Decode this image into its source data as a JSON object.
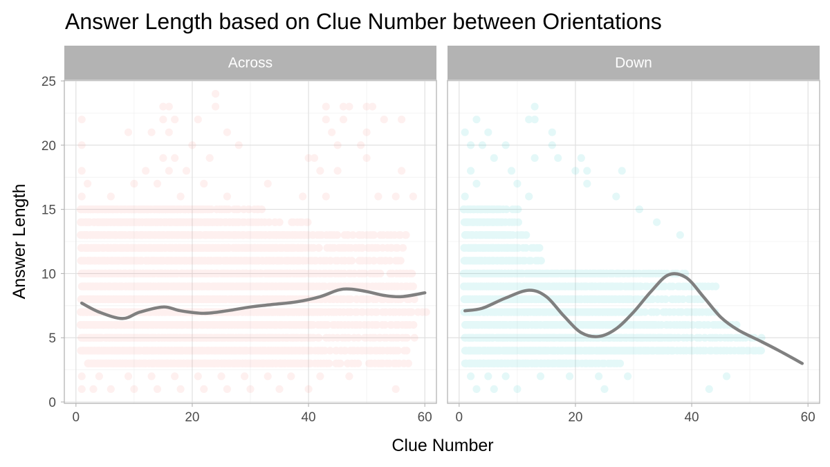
{
  "chart_data": {
    "type": "scatter",
    "title": "Answer Length based on Clue Number between Orientations",
    "xlabel": "Clue Number",
    "ylabel": "Answer Length",
    "xlim": [
      -2,
      62
    ],
    "ylim": [
      0,
      25
    ],
    "x_ticks": [
      0,
      20,
      40,
      60
    ],
    "x_tick_labels": [
      "0",
      "20",
      "40",
      "60"
    ],
    "y_ticks": [
      0,
      5,
      10,
      15,
      20,
      25
    ],
    "y_tick_labels": [
      "0",
      "5",
      "10",
      "15",
      "20",
      "25"
    ],
    "grid": true,
    "legend": "none",
    "point_opacity": 0.1,
    "smooth_color": "#808080",
    "facets": [
      {
        "label": "Across",
        "color": "#F8766D",
        "points_sample": {
          "dense_bands": [
            {
              "y": 3,
              "x_range": [
                2,
                57
              ]
            },
            {
              "y": 4,
              "x_range": [
                1,
                57
              ]
            },
            {
              "y": 5,
              "x_range": [
                1,
                58
              ]
            },
            {
              "y": 6,
              "x_range": [
                1,
                58
              ]
            },
            {
              "y": 7,
              "x_range": [
                1,
                60
              ]
            },
            {
              "y": 8,
              "x_range": [
                1,
                58
              ]
            },
            {
              "y": 9,
              "x_range": [
                1,
                58
              ]
            },
            {
              "y": 10,
              "x_range": [
                1,
                58
              ]
            },
            {
              "y": 11,
              "x_range": [
                1,
                56
              ]
            },
            {
              "y": 12,
              "x_range": [
                1,
                56
              ]
            },
            {
              "y": 13,
              "x_range": [
                1,
                57
              ]
            },
            {
              "y": 14,
              "x_range": [
                1,
                40
              ]
            },
            {
              "y": 15,
              "x_range": [
                1,
                32
              ]
            }
          ],
          "sparse": [
            [
              1,
              1
            ],
            [
              3,
              1
            ],
            [
              6,
              1
            ],
            [
              10,
              1
            ],
            [
              14,
              1
            ],
            [
              18,
              1
            ],
            [
              22,
              1
            ],
            [
              26,
              1
            ],
            [
              30,
              1
            ],
            [
              35,
              1
            ],
            [
              40,
              1
            ],
            [
              55,
              1
            ],
            [
              1,
              2
            ],
            [
              4,
              2
            ],
            [
              9,
              2
            ],
            [
              13,
              2
            ],
            [
              17,
              2
            ],
            [
              21,
              2
            ],
            [
              25,
              2
            ],
            [
              29,
              2
            ],
            [
              33,
              2
            ],
            [
              37,
              2
            ],
            [
              42,
              2
            ],
            [
              47,
              2
            ],
            [
              1,
              16
            ],
            [
              2,
              17
            ],
            [
              6,
              16
            ],
            [
              10,
              17
            ],
            [
              14,
              17
            ],
            [
              18,
              16
            ],
            [
              22,
              17
            ],
            [
              26,
              16
            ],
            [
              33,
              17
            ],
            [
              39,
              16
            ],
            [
              43,
              16
            ],
            [
              52,
              16
            ],
            [
              55,
              16
            ],
            [
              58,
              16
            ],
            [
              1,
              18
            ],
            [
              12,
              18
            ],
            [
              16,
              18
            ],
            [
              19,
              18
            ],
            [
              42,
              18
            ],
            [
              45,
              18
            ],
            [
              56,
              18
            ],
            [
              15,
              19
            ],
            [
              17,
              19
            ],
            [
              23,
              19
            ],
            [
              40,
              19
            ],
            [
              41,
              19
            ],
            [
              50,
              19
            ],
            [
              1,
              20
            ],
            [
              20,
              20
            ],
            [
              28,
              20
            ],
            [
              45,
              20
            ],
            [
              49,
              20
            ],
            [
              9,
              21
            ],
            [
              13,
              21
            ],
            [
              16,
              21
            ],
            [
              26,
              21
            ],
            [
              44,
              21
            ],
            [
              50,
              21
            ],
            [
              1,
              22
            ],
            [
              15,
              22
            ],
            [
              17,
              22
            ],
            [
              21,
              22
            ],
            [
              43,
              22
            ],
            [
              46,
              22
            ],
            [
              53,
              22
            ],
            [
              56,
              22
            ],
            [
              15,
              23
            ],
            [
              16,
              23
            ],
            [
              24,
              23
            ],
            [
              43,
              23
            ],
            [
              46,
              23
            ],
            [
              47,
              23
            ],
            [
              50,
              23
            ],
            [
              51,
              23
            ],
            [
              24,
              24
            ]
          ]
        },
        "smooth": {
          "x": [
            1,
            4,
            8,
            11,
            15,
            18,
            22,
            26,
            30,
            34,
            38,
            42,
            45,
            47,
            50,
            53,
            56,
            60
          ],
          "y": [
            7.7,
            7.0,
            6.5,
            7.0,
            7.4,
            7.1,
            6.9,
            7.1,
            7.4,
            7.6,
            7.8,
            8.2,
            8.7,
            8.8,
            8.6,
            8.3,
            8.2,
            8.5
          ]
        }
      },
      {
        "label": "Down",
        "color": "#00BFC4",
        "points_sample": {
          "dense_bands": [
            {
              "y": 3,
              "x_range": [
                1,
                28
              ]
            },
            {
              "y": 4,
              "x_range": [
                1,
                52
              ]
            },
            {
              "y": 5,
              "x_range": [
                1,
                52
              ]
            },
            {
              "y": 6,
              "x_range": [
                1,
                48
              ]
            },
            {
              "y": 7,
              "x_range": [
                1,
                44
              ]
            },
            {
              "y": 8,
              "x_range": [
                1,
                42
              ]
            },
            {
              "y": 9,
              "x_range": [
                1,
                44
              ]
            },
            {
              "y": 10,
              "x_range": [
                1,
                39
              ]
            },
            {
              "y": 11,
              "x_range": [
                1,
                14
              ]
            },
            {
              "y": 12,
              "x_range": [
                1,
                14
              ]
            },
            {
              "y": 13,
              "x_range": [
                1,
                12
              ]
            },
            {
              "y": 14,
              "x_range": [
                1,
                10
              ]
            },
            {
              "y": 15,
              "x_range": [
                1,
                10
              ]
            }
          ],
          "sparse": [
            [
              3,
              1
            ],
            [
              6,
              1
            ],
            [
              10,
              1
            ],
            [
              25,
              1
            ],
            [
              43,
              1
            ],
            [
              2,
              2
            ],
            [
              5,
              2
            ],
            [
              8,
              2
            ],
            [
              14,
              2
            ],
            [
              19,
              2
            ],
            [
              24,
              2
            ],
            [
              29,
              2
            ],
            [
              46,
              2
            ],
            [
              1,
              16
            ],
            [
              3,
              17
            ],
            [
              10,
              17
            ],
            [
              12,
              16
            ],
            [
              22,
              17
            ],
            [
              27,
              16
            ],
            [
              31,
              15
            ],
            [
              34,
              14
            ],
            [
              38,
              13
            ],
            [
              2,
              18
            ],
            [
              9,
              18
            ],
            [
              20,
              18
            ],
            [
              22,
              18
            ],
            [
              28,
              18
            ],
            [
              6,
              19
            ],
            [
              13,
              19
            ],
            [
              17,
              19
            ],
            [
              21,
              19
            ],
            [
              2,
              20
            ],
            [
              4,
              20
            ],
            [
              8,
              20
            ],
            [
              16,
              20
            ],
            [
              1,
              21
            ],
            [
              5,
              21
            ],
            [
              16,
              21
            ],
            [
              3,
              22
            ],
            [
              12,
              22
            ],
            [
              13,
              22
            ],
            [
              13,
              23
            ]
          ]
        },
        "smooth": {
          "x": [
            1,
            4,
            8,
            12,
            15,
            18,
            21,
            24,
            27,
            30,
            33,
            36,
            39,
            42,
            45,
            48,
            52,
            55,
            59
          ],
          "y": [
            7.1,
            7.3,
            8.1,
            8.7,
            8.2,
            6.7,
            5.4,
            5.1,
            5.7,
            7.0,
            8.6,
            9.9,
            9.7,
            8.2,
            6.6,
            5.6,
            4.7,
            4.0,
            3.0
          ]
        }
      }
    ]
  }
}
